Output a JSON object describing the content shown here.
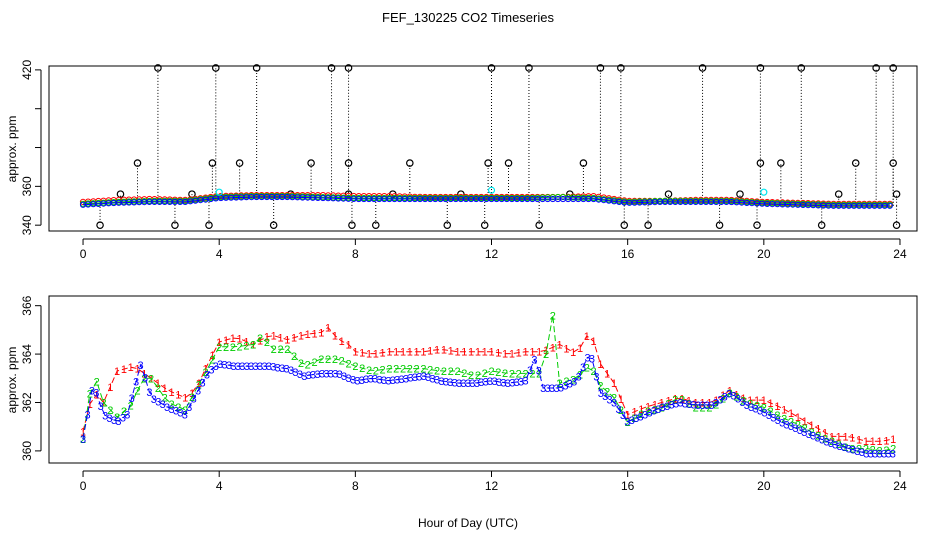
{
  "figure": {
    "title": "FEF_130225  CO2 Timeseries",
    "xlabel": "Hour of Day (UTC)"
  },
  "colors": {
    "ch1": "#ff0000",
    "ch2": "#00cc00",
    "ch3": "#0000ff",
    "black": "#000000",
    "cyan": "#00e5ee"
  },
  "chart_data": [
    {
      "type": "scatter",
      "name": "top-panel",
      "ylabel": "approx. ppm",
      "xlim": [
        -1,
        24.5
      ],
      "ylim": [
        337,
        422
      ],
      "xticks": [
        0,
        4,
        8,
        12,
        16,
        20,
        24
      ],
      "yticks": [
        340,
        360,
        380,
        400,
        420
      ],
      "ytick_labels": [
        "340",
        "360",
        "",
        "",
        "420"
      ],
      "baseline_series": [
        {
          "name": "1",
          "color": "#ff0000",
          "x": [
            0,
            1,
            2,
            3,
            4,
            5,
            6,
            7,
            8,
            9,
            10,
            11,
            12,
            13,
            14,
            15,
            16,
            17,
            18,
            19,
            20,
            21,
            22,
            23,
            23.7
          ],
          "y": [
            352.0,
            353.0,
            353.5,
            353.0,
            355.0,
            355.5,
            355.5,
            355.5,
            355.0,
            355.0,
            354.5,
            354.5,
            354.5,
            354.5,
            354.5,
            355.0,
            352.5,
            352.5,
            353.0,
            353.0,
            352.0,
            351.5,
            351.0,
            351.0,
            351.0
          ]
        },
        {
          "name": "2",
          "color": "#00cc00",
          "x": [
            0,
            1,
            2,
            3,
            4,
            5,
            6,
            7,
            8,
            9,
            10,
            11,
            12,
            13,
            14,
            15,
            16,
            17,
            18,
            19,
            20,
            21,
            22,
            23,
            23.7
          ],
          "y": [
            351.0,
            352.0,
            352.5,
            352.5,
            354.5,
            355.0,
            355.0,
            354.5,
            354.0,
            354.0,
            354.0,
            354.0,
            354.0,
            354.0,
            354.5,
            354.0,
            352.0,
            352.5,
            352.5,
            352.5,
            351.5,
            351.0,
            350.5,
            350.5,
            350.5
          ]
        },
        {
          "name": "3",
          "color": "#0000ff",
          "x": [
            0,
            1,
            2,
            3,
            4,
            5,
            6,
            7,
            8,
            9,
            10,
            11,
            12,
            13,
            14,
            15,
            16,
            17,
            18,
            19,
            20,
            21,
            22,
            23,
            23.7
          ],
          "y": [
            350.5,
            351.5,
            352.0,
            352.0,
            354.0,
            354.5,
            354.5,
            354.0,
            353.5,
            353.5,
            353.5,
            353.5,
            353.5,
            353.5,
            353.5,
            353.5,
            351.5,
            352.0,
            352.0,
            352.0,
            351.0,
            350.5,
            350.0,
            350.0,
            350.0
          ]
        }
      ],
      "spikes": [
        {
          "x": 2.2,
          "y": 421
        },
        {
          "x": 3.9,
          "y": 421
        },
        {
          "x": 5.1,
          "y": 421
        },
        {
          "x": 7.3,
          "y": 421
        },
        {
          "x": 7.8,
          "y": 421
        },
        {
          "x": 12.0,
          "y": 421
        },
        {
          "x": 13.1,
          "y": 421
        },
        {
          "x": 15.2,
          "y": 421
        },
        {
          "x": 15.8,
          "y": 421
        },
        {
          "x": 18.2,
          "y": 421
        },
        {
          "x": 19.9,
          "y": 421
        },
        {
          "x": 21.1,
          "y": 421
        },
        {
          "x": 23.3,
          "y": 421
        },
        {
          "x": 23.8,
          "y": 421
        },
        {
          "x": 1.6,
          "y": 372
        },
        {
          "x": 3.8,
          "y": 372
        },
        {
          "x": 4.6,
          "y": 372
        },
        {
          "x": 6.7,
          "y": 372
        },
        {
          "x": 7.8,
          "y": 372
        },
        {
          "x": 9.6,
          "y": 372
        },
        {
          "x": 11.9,
          "y": 372
        },
        {
          "x": 12.5,
          "y": 372
        },
        {
          "x": 14.7,
          "y": 372
        },
        {
          "x": 19.9,
          "y": 372
        },
        {
          "x": 20.5,
          "y": 372
        },
        {
          "x": 22.7,
          "y": 372
        },
        {
          "x": 23.8,
          "y": 372
        },
        {
          "x": 1.1,
          "y": 356
        },
        {
          "x": 3.2,
          "y": 356
        },
        {
          "x": 6.1,
          "y": 356
        },
        {
          "x": 7.8,
          "y": 356
        },
        {
          "x": 9.1,
          "y": 356
        },
        {
          "x": 11.1,
          "y": 356
        },
        {
          "x": 14.3,
          "y": 356
        },
        {
          "x": 17.2,
          "y": 356
        },
        {
          "x": 19.3,
          "y": 356
        },
        {
          "x": 22.2,
          "y": 356
        },
        {
          "x": 23.9,
          "y": 356
        },
        {
          "x": 0.5,
          "y": 340
        },
        {
          "x": 2.7,
          "y": 340
        },
        {
          "x": 3.7,
          "y": 340
        },
        {
          "x": 5.6,
          "y": 340
        },
        {
          "x": 7.9,
          "y": 340
        },
        {
          "x": 8.6,
          "y": 340
        },
        {
          "x": 10.7,
          "y": 340
        },
        {
          "x": 11.8,
          "y": 340
        },
        {
          "x": 13.4,
          "y": 340
        },
        {
          "x": 15.9,
          "y": 340
        },
        {
          "x": 16.6,
          "y": 340
        },
        {
          "x": 18.7,
          "y": 340
        },
        {
          "x": 19.8,
          "y": 340
        },
        {
          "x": 21.7,
          "y": 340
        },
        {
          "x": 23.9,
          "y": 340
        }
      ],
      "cyan_points": [
        {
          "x": 4.0,
          "y": 357
        },
        {
          "x": 12.0,
          "y": 358
        },
        {
          "x": 20.0,
          "y": 357
        }
      ]
    },
    {
      "type": "line",
      "name": "bottom-panel",
      "ylabel": "approx. ppm",
      "xlim": [
        -1,
        24.5
      ],
      "ylim": [
        359.5,
        366.4
      ],
      "xticks": [
        0,
        4,
        8,
        12,
        16,
        20,
        24
      ],
      "yticks": [
        360,
        362,
        364,
        366
      ],
      "series": [
        {
          "name": "1",
          "color": "#ff0000",
          "x": [
            0.0,
            0.3,
            0.6,
            1.0,
            1.5,
            1.7,
            2.0,
            2.5,
            3.0,
            3.3,
            3.7,
            4.0,
            4.5,
            5.0,
            5.5,
            6.0,
            6.5,
            7.0,
            7.2,
            7.5,
            7.8,
            8.0,
            8.5,
            9.0,
            9.5,
            10.0,
            10.5,
            11.0,
            11.5,
            12.0,
            12.5,
            13.0,
            13.5,
            14.0,
            14.5,
            14.9,
            15.2,
            15.6,
            16.0,
            16.5,
            17.0,
            17.5,
            18.0,
            18.5,
            19.0,
            19.5,
            20.0,
            20.5,
            21.0,
            21.5,
            22.0,
            22.5,
            23.0,
            23.5,
            23.8
          ],
          "y": [
            360.8,
            362.5,
            362.0,
            363.3,
            363.5,
            363.3,
            363.0,
            362.5,
            362.2,
            362.5,
            363.7,
            364.5,
            364.7,
            364.4,
            364.8,
            364.6,
            364.8,
            364.9,
            365.1,
            364.6,
            364.4,
            364.1,
            364.0,
            364.1,
            364.1,
            364.1,
            364.2,
            364.1,
            364.1,
            364.1,
            364.0,
            364.1,
            364.1,
            364.4,
            364.0,
            365.0,
            363.6,
            362.8,
            361.5,
            361.8,
            362.0,
            362.2,
            362.0,
            362.0,
            362.5,
            362.1,
            362.1,
            361.8,
            361.4,
            361.0,
            360.6,
            360.6,
            360.4,
            360.4,
            360.5
          ]
        },
        {
          "name": "2",
          "color": "#00cc00",
          "x": [
            0.0,
            0.3,
            0.6,
            1.0,
            1.5,
            1.7,
            2.0,
            2.5,
            3.0,
            3.3,
            3.7,
            4.0,
            4.5,
            5.0,
            5.3,
            5.5,
            6.0,
            6.5,
            7.0,
            7.5,
            8.0,
            8.5,
            9.0,
            9.5,
            10.0,
            10.5,
            11.0,
            11.5,
            12.0,
            12.5,
            13.0,
            13.5,
            13.8,
            14.0,
            14.5,
            14.9,
            15.2,
            15.6,
            16.0,
            16.5,
            17.0,
            17.5,
            18.0,
            18.5,
            19.0,
            19.5,
            20.0,
            20.5,
            21.0,
            21.5,
            22.0,
            22.5,
            23.0,
            23.5,
            23.8
          ],
          "y": [
            360.5,
            363.3,
            362.0,
            361.4,
            362.0,
            363.0,
            363.0,
            362.0,
            361.7,
            362.5,
            363.5,
            364.3,
            364.3,
            364.4,
            364.8,
            364.2,
            364.2,
            363.5,
            363.8,
            363.8,
            363.5,
            363.3,
            363.4,
            363.4,
            363.4,
            363.3,
            363.3,
            363.1,
            363.3,
            363.2,
            363.2,
            363.2,
            365.6,
            362.8,
            363.0,
            363.6,
            362.7,
            362.2,
            361.2,
            361.6,
            361.8,
            362.2,
            361.8,
            361.8,
            362.4,
            362.0,
            361.8,
            361.4,
            361.1,
            360.7,
            360.4,
            360.1,
            360.1,
            360.0,
            360.1
          ]
        },
        {
          "name": "3",
          "color": "#0000ff",
          "x": [
            0.0,
            0.3,
            0.6,
            1.0,
            1.3,
            1.7,
            2.0,
            2.5,
            3.0,
            3.3,
            3.7,
            4.0,
            4.5,
            5.0,
            5.5,
            6.0,
            6.5,
            7.0,
            7.5,
            8.0,
            8.5,
            9.0,
            9.5,
            10.0,
            10.5,
            11.0,
            11.5,
            12.0,
            12.5,
            13.0,
            13.3,
            13.5,
            14.0,
            14.5,
            14.9,
            15.2,
            15.6,
            16.0,
            16.5,
            17.0,
            17.5,
            18.0,
            18.5,
            19.0,
            19.5,
            20.0,
            20.5,
            21.0,
            21.5,
            22.0,
            22.5,
            23.0,
            23.5,
            23.8
          ],
          "y": [
            360.5,
            362.8,
            361.5,
            361.2,
            361.5,
            363.6,
            362.2,
            361.8,
            361.5,
            362.3,
            363.3,
            363.6,
            363.5,
            363.5,
            363.5,
            363.4,
            363.1,
            363.2,
            363.2,
            362.9,
            363.0,
            362.9,
            363.0,
            363.1,
            362.9,
            362.8,
            362.8,
            362.9,
            362.8,
            362.9,
            363.9,
            362.6,
            362.6,
            362.9,
            364.1,
            362.4,
            362.0,
            361.2,
            361.5,
            361.8,
            362.0,
            361.9,
            361.9,
            362.4,
            361.9,
            361.6,
            361.2,
            360.9,
            360.6,
            360.3,
            360.1,
            359.9,
            359.9,
            359.9
          ]
        }
      ]
    }
  ]
}
